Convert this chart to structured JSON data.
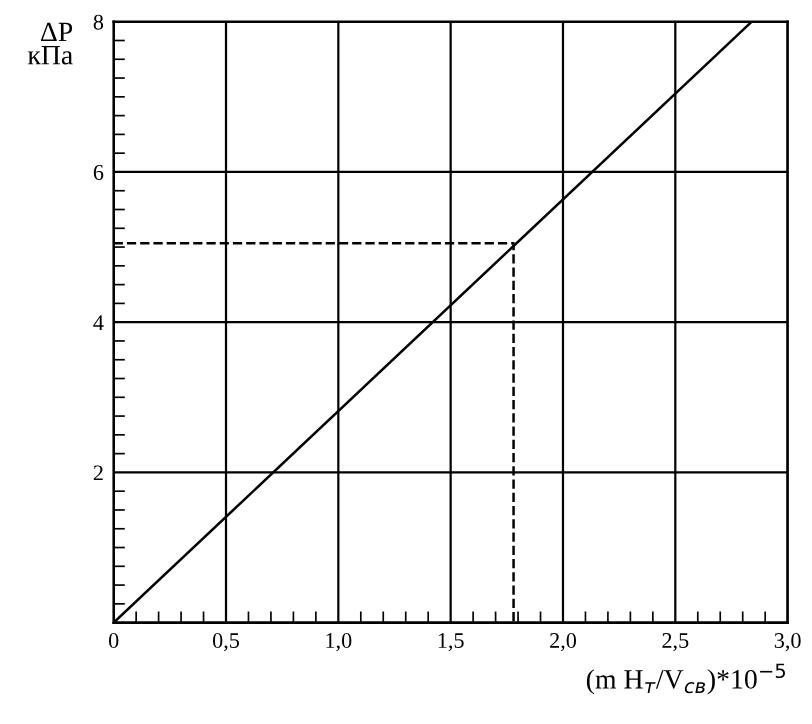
{
  "chart_data": {
    "type": "line",
    "xlabel": "(m H$_{т}$/V$_{св}$)*10$^{−5}$",
    "ylabel": "ΔP\nкПа",
    "series": [
      {
        "x": [
          0,
          2.84
        ],
        "values": [
          0,
          8
        ],
        "color": "#000000",
        "line_style": "solid"
      },
      {
        "x": [
          0,
          1.78,
          1.78
        ],
        "values": [
          5.05,
          5.05,
          0
        ],
        "color": "#000000",
        "line_style": "dashed"
      }
    ],
    "xlim": [
      0,
      3
    ],
    "ylim": [
      0,
      8
    ],
    "xticks": [
      0,
      {
        "value": 0.5,
        "label": "0,5"
      },
      {
        "value": 1.0,
        "label": "1,0"
      },
      {
        "value": 1.5,
        "label": "1,5"
      },
      {
        "value": 2.0,
        "label": "2,0"
      },
      {
        "value": 2.5,
        "label": "2,5"
      },
      {
        "value": 3.0,
        "label": "3,0"
      }
    ],
    "yticks": [
      {
        "value": 0,
        "label": null
      },
      2,
      4,
      6,
      8
    ],
    "grid": true,
    "marker": "none"
  }
}
